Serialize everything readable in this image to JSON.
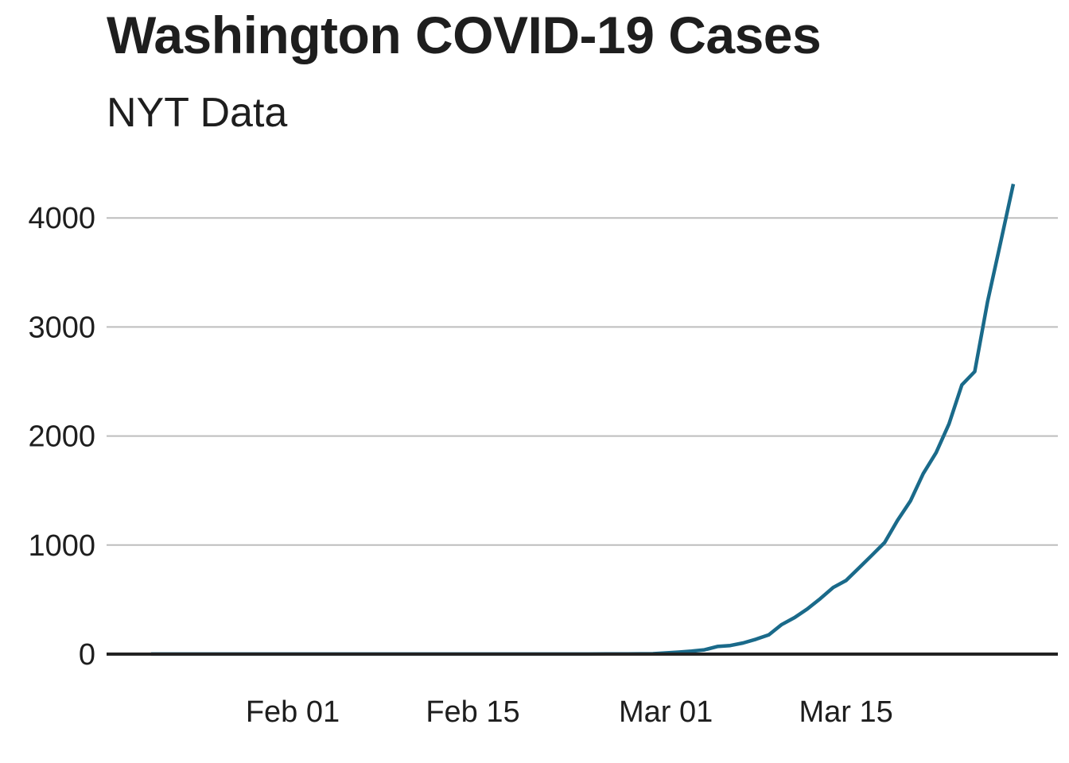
{
  "chart_data": {
    "type": "line",
    "title": "Washington COVID-19 Cases",
    "subtitle": "NYT Data",
    "xlabel": "",
    "ylabel": "",
    "x_range": [
      "2020-01-21",
      "2020-03-28"
    ],
    "ylim": [
      0,
      4350
    ],
    "x_ticks": [
      {
        "date": "2020-02-01",
        "label": "Feb 01"
      },
      {
        "date": "2020-02-15",
        "label": "Feb 15"
      },
      {
        "date": "2020-03-01",
        "label": "Mar 01"
      },
      {
        "date": "2020-03-15",
        "label": "Mar 15"
      }
    ],
    "y_ticks": [
      0,
      1000,
      2000,
      3000,
      4000
    ],
    "grid": "horizontal",
    "legend": "none",
    "line_color": "#1a6a8a",
    "series": [
      {
        "name": "",
        "points": [
          [
            "2020-01-21",
            1
          ],
          [
            "2020-01-25",
            1
          ],
          [
            "2020-01-30",
            1
          ],
          [
            "2020-02-05",
            1
          ],
          [
            "2020-02-10",
            1
          ],
          [
            "2020-02-15",
            1
          ],
          [
            "2020-02-20",
            1
          ],
          [
            "2020-02-24",
            1
          ],
          [
            "2020-02-27",
            2
          ],
          [
            "2020-02-29",
            4
          ],
          [
            "2020-03-01",
            11
          ],
          [
            "2020-03-02",
            18
          ],
          [
            "2020-03-03",
            27
          ],
          [
            "2020-03-04",
            39
          ],
          [
            "2020-03-05",
            70
          ],
          [
            "2020-03-06",
            79
          ],
          [
            "2020-03-07",
            102
          ],
          [
            "2020-03-08",
            136
          ],
          [
            "2020-03-09",
            177
          ],
          [
            "2020-03-10",
            271
          ],
          [
            "2020-03-11",
            335
          ],
          [
            "2020-03-12",
            415
          ],
          [
            "2020-03-13",
            509
          ],
          [
            "2020-03-14",
            611
          ],
          [
            "2020-03-15",
            675
          ],
          [
            "2020-03-16",
            790
          ],
          [
            "2020-03-17",
            905
          ],
          [
            "2020-03-18",
            1023
          ],
          [
            "2020-03-19",
            1227
          ],
          [
            "2020-03-20",
            1404
          ],
          [
            "2020-03-21",
            1655
          ],
          [
            "2020-03-22",
            1847
          ],
          [
            "2020-03-23",
            2111
          ],
          [
            "2020-03-24",
            2469
          ],
          [
            "2020-03-25",
            2591
          ],
          [
            "2020-03-26",
            3232
          ],
          [
            "2020-03-27",
            3768
          ],
          [
            "2020-03-28",
            4311
          ]
        ]
      }
    ]
  }
}
